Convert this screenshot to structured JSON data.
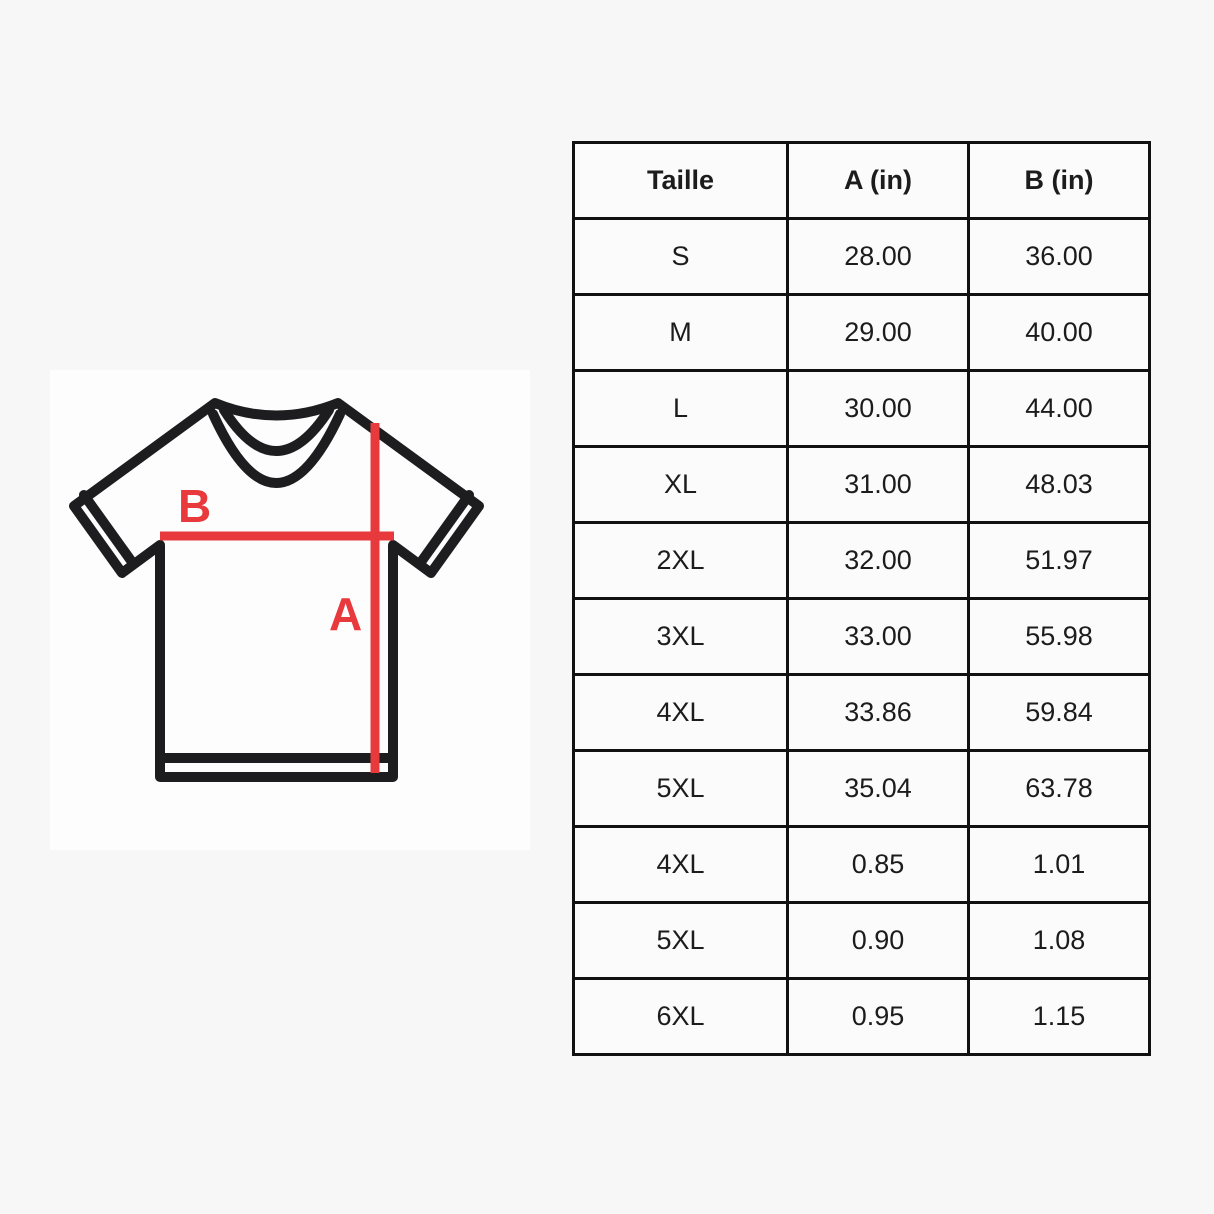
{
  "colors": {
    "page_bg": "#f7f7f7",
    "panel_bg": "#fdfdfd",
    "accent_red": "#e8393c",
    "outline_black": "#1d1d1f",
    "table_border": "#111111",
    "cell_bg": "#fbfbfb",
    "text": "#1c1c1c"
  },
  "diagram": {
    "icon": "tshirt-outline-icon",
    "label_a": "A",
    "label_b": "B"
  },
  "table": {
    "headers": [
      "Taille",
      "A (in)",
      "B (in)"
    ],
    "rows": [
      {
        "size": "S",
        "a": "28.00",
        "b": "36.00"
      },
      {
        "size": "M",
        "a": "29.00",
        "b": "40.00"
      },
      {
        "size": "L",
        "a": "30.00",
        "b": "44.00"
      },
      {
        "size": "XL",
        "a": "31.00",
        "b": "48.03"
      },
      {
        "size": "2XL",
        "a": "32.00",
        "b": "51.97"
      },
      {
        "size": "3XL",
        "a": "33.00",
        "b": "55.98"
      },
      {
        "size": "4XL",
        "a": "33.86",
        "b": "59.84"
      },
      {
        "size": "5XL",
        "a": "35.04",
        "b": "63.78"
      },
      {
        "size": "4XL",
        "a": "0.85",
        "b": "1.01"
      },
      {
        "size": "5XL",
        "a": "0.90",
        "b": "1.08"
      },
      {
        "size": "6XL",
        "a": "0.95",
        "b": "1.15"
      }
    ]
  }
}
